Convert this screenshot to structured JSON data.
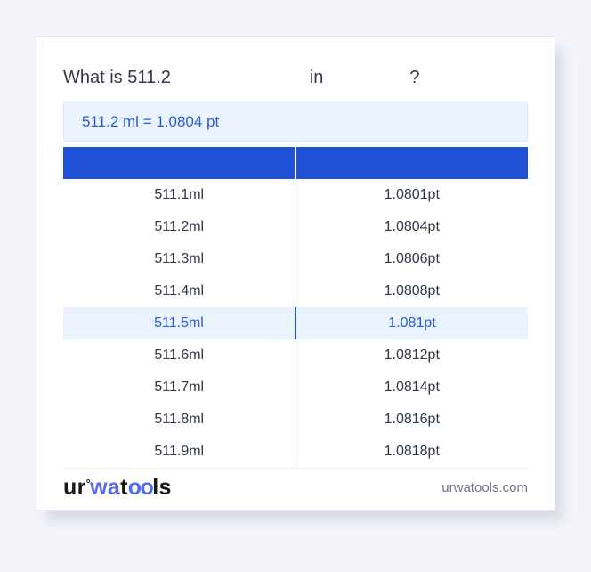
{
  "question": {
    "prefix": "What is",
    "value": "511.2",
    "connector": "in",
    "question_mark": "?"
  },
  "result_text": "511.2 ml = 1.0804 pt",
  "table": {
    "col1_header": "",
    "col2_header": "",
    "highlighted_row_index": 4,
    "rows": [
      {
        "ml": "511.1ml",
        "pt": "1.0801pt"
      },
      {
        "ml": "511.2ml",
        "pt": "1.0804pt"
      },
      {
        "ml": "511.3ml",
        "pt": "1.0806pt"
      },
      {
        "ml": "511.4ml",
        "pt": "1.0808pt"
      },
      {
        "ml": "511.5ml",
        "pt": "1.081pt"
      },
      {
        "ml": "511.6ml",
        "pt": "1.0812pt"
      },
      {
        "ml": "511.7ml",
        "pt": "1.0814pt"
      },
      {
        "ml": "511.8ml",
        "pt": "1.0816pt"
      },
      {
        "ml": "511.9ml",
        "pt": "1.0818pt"
      }
    ]
  },
  "footer": {
    "logo": {
      "seg1": "ur",
      "ring": "°",
      "seg2": "wa",
      "seg3": "t",
      "seg4": "oo",
      "seg5": "ls"
    },
    "domain": "urwatools.com"
  },
  "colors": {
    "accent_blue": "#1f51d6",
    "result_text_blue": "#2a5cd0",
    "highlight_bg": "#eaf2fe",
    "logo_blue": "#5a68ef",
    "page_bg": "#f3f4f9"
  }
}
